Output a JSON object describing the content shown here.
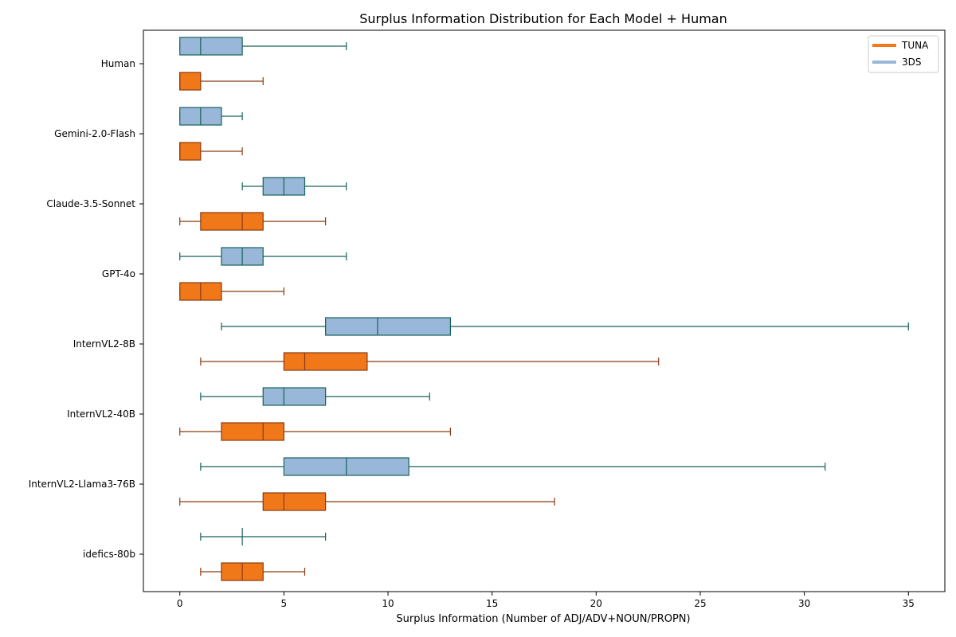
{
  "chart_data": {
    "type": "boxplot",
    "title": "Surplus Information Distribution for Each Model + Human",
    "xlabel": "Surplus Information (Number of ADJ/ADV+NOUN/PROPN)",
    "ylabel": "",
    "orientation": "horizontal",
    "xlim": [
      -1.75,
      36.75
    ],
    "xticks": [
      0,
      5,
      10,
      15,
      20,
      25,
      30,
      35
    ],
    "categories": [
      "Human",
      "Gemini-2.0-Flash",
      "Claude-3.5-Sonnet",
      "GPT-4o",
      "InternVL2-8B",
      "InternVL2-40B",
      "InternVL2-Llama3-76B",
      "idefics-80b"
    ],
    "legend": {
      "placement": "top-right"
    },
    "series": [
      {
        "name": "TUNA",
        "color": "#f07819",
        "edge_color": "#8b3a0f",
        "boxes": [
          {
            "whislo": 0,
            "q1": 0,
            "med": 0,
            "q3": 1,
            "whishi": 4
          },
          {
            "whislo": 0,
            "q1": 0,
            "med": 0,
            "q3": 1,
            "whishi": 3
          },
          {
            "whislo": 0,
            "q1": 1,
            "med": 3,
            "q3": 4,
            "whishi": 7
          },
          {
            "whislo": 0,
            "q1": 0,
            "med": 1,
            "q3": 2,
            "whishi": 5
          },
          {
            "whislo": 1,
            "q1": 5,
            "med": 6,
            "q3": 9,
            "whishi": 23
          },
          {
            "whislo": 0,
            "q1": 2,
            "med": 4,
            "q3": 5,
            "whishi": 13
          },
          {
            "whislo": 0,
            "q1": 4,
            "med": 5,
            "q3": 7,
            "whishi": 18
          },
          {
            "whislo": 1,
            "q1": 2,
            "med": 3,
            "q3": 4,
            "whishi": 6
          }
        ]
      },
      {
        "name": "3DS",
        "color": "#99b7d8",
        "edge_color": "#16625a",
        "boxes": [
          {
            "whislo": 0,
            "q1": 0,
            "med": 1,
            "q3": 3,
            "whishi": 8
          },
          {
            "whislo": 0,
            "q1": 0,
            "med": 1,
            "q3": 2,
            "whishi": 3
          },
          {
            "whislo": 3,
            "q1": 4,
            "med": 5,
            "q3": 6,
            "whishi": 8
          },
          {
            "whislo": 0,
            "q1": 2,
            "med": 3,
            "q3": 4,
            "whishi": 8
          },
          {
            "whislo": 2,
            "q1": 7,
            "med": 9.5,
            "q3": 13,
            "whishi": 35
          },
          {
            "whislo": 1,
            "q1": 4,
            "med": 5,
            "q3": 7,
            "whishi": 12
          },
          {
            "whislo": 1,
            "q1": 5,
            "med": 8,
            "q3": 11,
            "whishi": 31
          },
          {
            "whislo": 1,
            "q1": 3,
            "med": 3,
            "q3": 3,
            "whishi": 7
          }
        ]
      }
    ]
  }
}
